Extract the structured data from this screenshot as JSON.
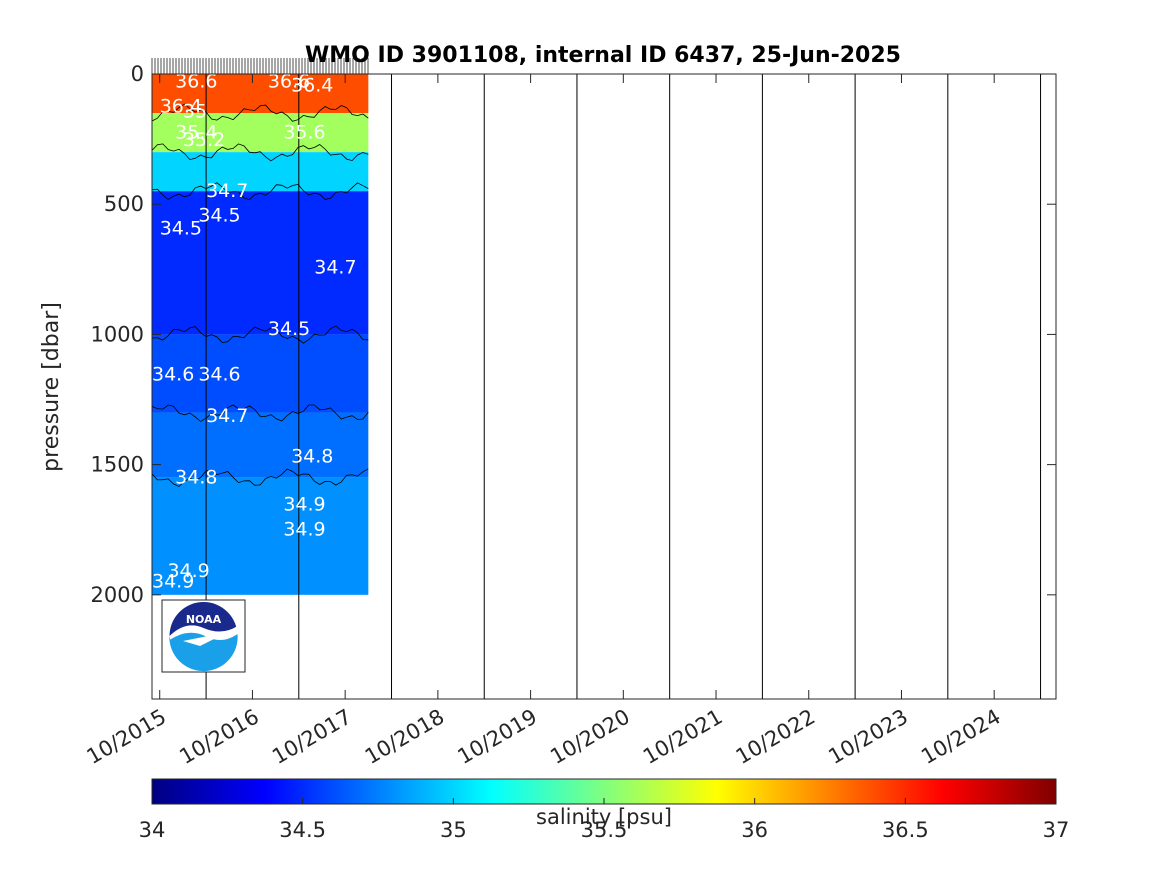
{
  "chart_data": {
    "type": "heatmap",
    "title": "WMO ID 3901108, internal ID 6437, 25-Jun-2025",
    "xlabel": "",
    "ylabel": "pressure [dbar]",
    "x_ticks": [
      "10/2015",
      "10/2016",
      "10/2017",
      "10/2018",
      "10/2019",
      "10/2020",
      "10/2021",
      "10/2022",
      "10/2023",
      "10/2024"
    ],
    "x_range": [
      "2015-09",
      "2025-06"
    ],
    "y_ticks": [
      0,
      500,
      1000,
      1500,
      2000
    ],
    "y_range": [
      0,
      2400
    ],
    "y_reversed": true,
    "data_extent": {
      "x": [
        "2015-09",
        "2018-01"
      ],
      "pressure": [
        0,
        2000
      ]
    },
    "yearly_vertical_lines": [
      "04/2016",
      "04/2017",
      "04/2018",
      "04/2019",
      "04/2020",
      "04/2021",
      "04/2022",
      "04/2023",
      "04/2024",
      "04/2025"
    ],
    "colorbar": {
      "label": "salinity [psu]",
      "range": [
        34,
        37
      ],
      "ticks": [
        34,
        34.5,
        35,
        35.5,
        36,
        36.5,
        37
      ],
      "colormap": "jet"
    },
    "layers": [
      {
        "pressure_range": [
          0,
          150
        ],
        "salinity": 36.4
      },
      {
        "pressure_range": [
          150,
          300
        ],
        "salinity": 35.6
      },
      {
        "pressure_range": [
          300,
          450
        ],
        "salinity": 35.0
      },
      {
        "pressure_range": [
          450,
          1000
        ],
        "salinity": 34.5
      },
      {
        "pressure_range": [
          1000,
          1300
        ],
        "salinity": 34.6
      },
      {
        "pressure_range": [
          1300,
          1550
        ],
        "salinity": 34.7
      },
      {
        "pressure_range": [
          1550,
          2000
        ],
        "salinity": 34.8
      }
    ],
    "contour_labels": [
      {
        "text": "36.6",
        "date": "2015-12",
        "pressure": 25
      },
      {
        "text": "36.4",
        "date": "2015-10",
        "pressure": 120
      },
      {
        "text": "35",
        "date": "2016-01",
        "pressure": 140
      },
      {
        "text": "35.4",
        "date": "2015-12",
        "pressure": 220
      },
      {
        "text": "35.2",
        "date": "2016-01",
        "pressure": 250
      },
      {
        "text": "36.6",
        "date": "2016-12",
        "pressure": 25
      },
      {
        "text": "36.4",
        "date": "2017-03",
        "pressure": 40
      },
      {
        "text": "35.6",
        "date": "2017-02",
        "pressure": 220
      },
      {
        "text": "34.7",
        "date": "2016-04",
        "pressure": 445
      },
      {
        "text": "34.5",
        "date": "2016-03",
        "pressure": 540
      },
      {
        "text": "34.5",
        "date": "2015-10",
        "pressure": 590
      },
      {
        "text": "34.7",
        "date": "2017-06",
        "pressure": 740
      },
      {
        "text": "34.5",
        "date": "2016-12",
        "pressure": 975
      },
      {
        "text": "34.6",
        "date": "2015-09",
        "pressure": 1150
      },
      {
        "text": "34.6",
        "date": "2016-03",
        "pressure": 1150
      },
      {
        "text": "34.7",
        "date": "2016-04",
        "pressure": 1310
      },
      {
        "text": "34.8",
        "date": "2017-03",
        "pressure": 1465
      },
      {
        "text": "34.8",
        "date": "2015-12",
        "pressure": 1545
      },
      {
        "text": "34.9",
        "date": "2017-02",
        "pressure": 1650
      },
      {
        "text": "34.9",
        "date": "2017-02",
        "pressure": 1745
      },
      {
        "text": "34.9",
        "date": "2015-11",
        "pressure": 1905
      },
      {
        "text": "34.9",
        "date": "2015-09",
        "pressure": 1945
      }
    ]
  },
  "logo": {
    "text": "NOAA",
    "colors": {
      "dark": "#1a2a8c",
      "light": "#1aa0e8"
    }
  }
}
